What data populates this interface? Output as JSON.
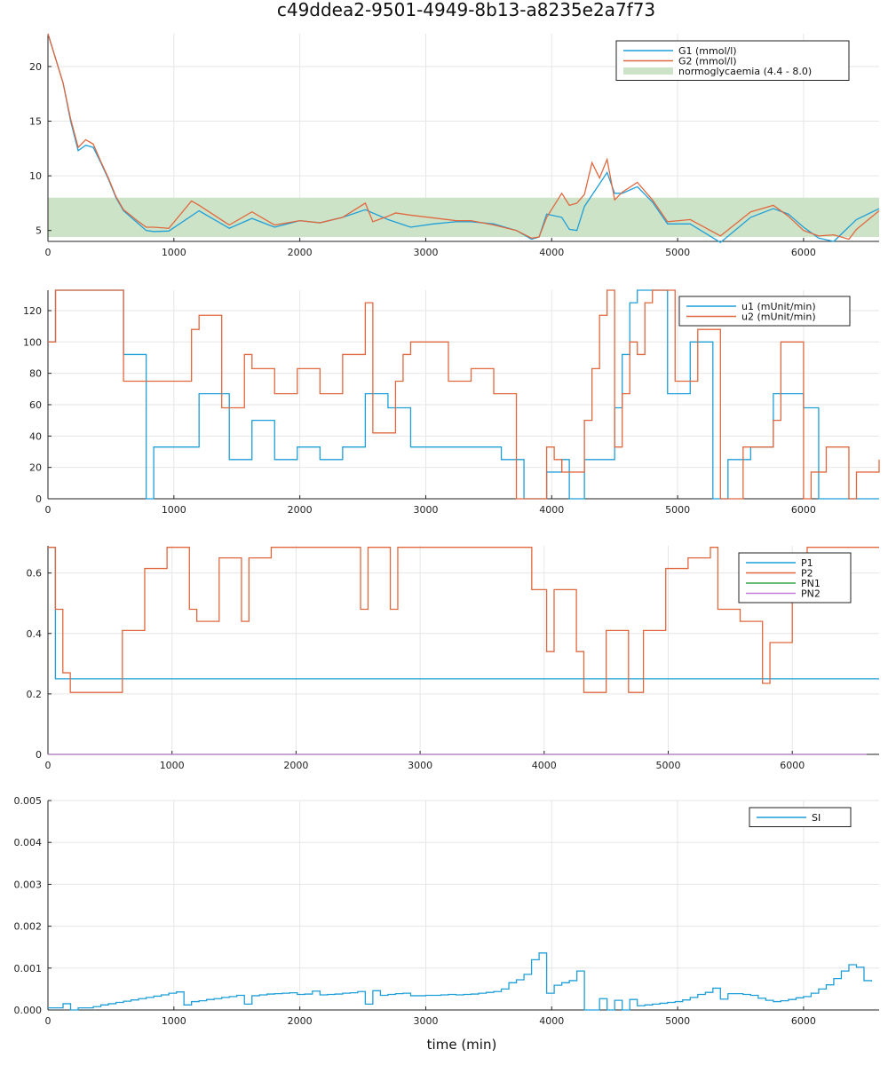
{
  "title": "c49ddea2-9501-4949-8b13-a8235e2a7f73",
  "colors": {
    "blue": "#1f9fd8",
    "orange": "#e0683f",
    "green": "#3aa54a",
    "purple": "#c47bd6",
    "band": "#cde3c8"
  },
  "chart_data": [
    {
      "type": "line",
      "xlim": [
        0,
        6600
      ],
      "ylim": [
        4,
        23
      ],
      "xticks": [
        0,
        1000,
        2000,
        3000,
        4000,
        5000,
        6000
      ],
      "yticks": [
        5,
        10,
        15,
        20
      ],
      "grid": true,
      "legend_position": "top-right",
      "band": {
        "label": "normoglycaemia (4.4 - 8.0)",
        "low": 4.4,
        "high": 8.0
      },
      "series": [
        {
          "name": "G1 (mmol/l)",
          "color": "#1f9fd8",
          "x": [
            0,
            120,
            180,
            240,
            300,
            360,
            420,
            480,
            540,
            600,
            720,
            780,
            840,
            960,
            1200,
            1440,
            1620,
            1800,
            2000,
            2160,
            2340,
            2520,
            2700,
            2880,
            3060,
            3240,
            3360,
            3540,
            3720,
            3840,
            3900,
            3960,
            4080,
            4140,
            4200,
            4260,
            4440,
            4500,
            4560,
            4680,
            4800,
            4920,
            5100,
            5340,
            5580,
            5760,
            5880,
            6000,
            6120,
            6240,
            6420,
            6600
          ],
          "y": [
            23,
            18.5,
            15.0,
            12.3,
            12.8,
            12.6,
            11.2,
            9.7,
            8.0,
            6.8,
            5.6,
            5.0,
            4.9,
            4.95,
            6.8,
            5.2,
            6.1,
            5.3,
            5.9,
            5.7,
            6.2,
            6.9,
            6.0,
            5.3,
            5.6,
            5.8,
            5.8,
            5.6,
            5.0,
            4.2,
            4.4,
            6.5,
            6.2,
            5.1,
            5.0,
            7.2,
            10.3,
            8.4,
            8.4,
            9.0,
            7.6,
            5.6,
            5.6,
            3.9,
            6.2,
            7.0,
            6.5,
            5.3,
            4.3,
            4.0,
            6.0,
            7.0
          ]
        },
        {
          "name": "G2 (mmol/l)",
          "color": "#e0683f",
          "x": [
            0,
            120,
            180,
            240,
            300,
            360,
            420,
            480,
            540,
            600,
            720,
            780,
            840,
            960,
            1140,
            1200,
            1440,
            1620,
            1800,
            2000,
            2160,
            2340,
            2520,
            2580,
            2700,
            2760,
            2880,
            3240,
            3360,
            3540,
            3720,
            3840,
            3900,
            3960,
            4080,
            4140,
            4200,
            4260,
            4320,
            4380,
            4440,
            4500,
            4560,
            4680,
            4800,
            4920,
            5100,
            5340,
            5580,
            5760,
            5880,
            6000,
            6120,
            6240,
            6360,
            6420,
            6600
          ],
          "y": [
            23,
            18.5,
            15.2,
            12.6,
            13.3,
            12.9,
            11.3,
            9.8,
            8.1,
            6.9,
            5.8,
            5.3,
            5.3,
            5.2,
            7.7,
            7.3,
            5.5,
            6.7,
            5.5,
            5.9,
            5.7,
            6.2,
            7.5,
            5.8,
            6.3,
            6.6,
            6.4,
            5.9,
            5.9,
            5.5,
            5.0,
            4.3,
            4.4,
            6.2,
            8.4,
            7.3,
            7.5,
            8.3,
            11.2,
            9.8,
            11.5,
            7.8,
            8.5,
            9.4,
            7.8,
            5.8,
            6.0,
            4.5,
            6.7,
            7.3,
            6.3,
            5.0,
            4.5,
            4.6,
            4.2,
            5.1,
            6.8
          ]
        }
      ]
    },
    {
      "type": "line",
      "xlim": [
        0,
        6600
      ],
      "ylim": [
        0,
        133
      ],
      "xticks": [
        0,
        1000,
        2000,
        3000,
        4000,
        5000,
        6000
      ],
      "yticks": [
        0,
        20,
        40,
        60,
        80,
        100,
        120
      ],
      "grid": true,
      "legend_position": "top-right",
      "series": [
        {
          "name": "u1 (mUnit/min)",
          "color": "#1f9fd8",
          "x": [
            0,
            60,
            600,
            780,
            840,
            1200,
            1440,
            1620,
            1800,
            1980,
            2160,
            2340,
            2520,
            2700,
            2880,
            3600,
            3780,
            3960,
            4080,
            4140,
            4260,
            4500,
            4560,
            4620,
            4680,
            4920,
            5100,
            5280,
            5400,
            5580,
            5760,
            6000,
            6120,
            6600
          ],
          "y": [
            100,
            133,
            92,
            0,
            33,
            67,
            25,
            50,
            25,
            33,
            25,
            33,
            67,
            58,
            33,
            25,
            0,
            17,
            25,
            0,
            25,
            58,
            92,
            125,
            133,
            67,
            100,
            0,
            25,
            33,
            67,
            58,
            0,
            0
          ]
        },
        {
          "name": "u2 (mUnit/min)",
          "color": "#e0683f",
          "x": [
            0,
            60,
            600,
            1140,
            1200,
            1380,
            1560,
            1620,
            1800,
            1980,
            2160,
            2340,
            2520,
            2580,
            2760,
            2820,
            2880,
            3180,
            3360,
            3540,
            3720,
            3960,
            4020,
            4080,
            4260,
            4320,
            4380,
            4440,
            4500,
            4560,
            4620,
            4680,
            4740,
            4800,
            4860,
            4980,
            5160,
            5340,
            5520,
            5760,
            5820,
            6000,
            6060,
            6180,
            6360,
            6420,
            6600
          ],
          "y": [
            100,
            133,
            75,
            108,
            117,
            58,
            92,
            83,
            67,
            83,
            67,
            92,
            125,
            42,
            75,
            92,
            100,
            75,
            83,
            67,
            0,
            33,
            25,
            17,
            50,
            83,
            117,
            133,
            33,
            67,
            100,
            92,
            125,
            133,
            133,
            75,
            108,
            0,
            33,
            50,
            100,
            0,
            17,
            33,
            0,
            17,
            25
          ]
        }
      ]
    },
    {
      "type": "line",
      "xlim": [
        0,
        6700
      ],
      "ylim": [
        0,
        0.69
      ],
      "xticks": [
        0,
        1000,
        2000,
        3000,
        4000,
        5000,
        6000
      ],
      "yticks": [
        0.0,
        0.2,
        0.4,
        0.6
      ],
      "grid": true,
      "legend_position": "top-right",
      "series": [
        {
          "name": "P1",
          "color": "#1f9fd8",
          "x": [
            0,
            60,
            6700
          ],
          "y": [
            0.685,
            0.25,
            0.25
          ]
        },
        {
          "name": "P2",
          "color": "#e0683f",
          "x": [
            0,
            60,
            120,
            180,
            600,
            780,
            960,
            1140,
            1200,
            1380,
            1560,
            1620,
            1800,
            2520,
            2580,
            2760,
            2820,
            3900,
            4020,
            4080,
            4260,
            4320,
            4500,
            4680,
            4800,
            4980,
            5160,
            5340,
            5400,
            5580,
            5760,
            5820,
            6000,
            6120,
            6700
          ],
          "y": [
            0.685,
            0.48,
            0.27,
            0.205,
            0.41,
            0.615,
            0.685,
            0.48,
            0.44,
            0.65,
            0.44,
            0.65,
            0.685,
            0.48,
            0.685,
            0.48,
            0.685,
            0.545,
            0.34,
            0.545,
            0.34,
            0.205,
            0.41,
            0.205,
            0.41,
            0.615,
            0.65,
            0.685,
            0.48,
            0.44,
            0.235,
            0.37,
            0.615,
            0.685,
            0.685
          ]
        },
        {
          "name": "PN1",
          "color": "#3aa54a",
          "x": [
            0,
            6600
          ],
          "y": [
            0.0,
            0.0
          ]
        },
        {
          "name": "PN2",
          "color": "#c47bd6",
          "x": [
            0,
            6600
          ],
          "y": [
            0.0,
            0.0
          ]
        }
      ]
    },
    {
      "type": "line",
      "xlim": [
        0,
        6600
      ],
      "ylim": [
        0,
        0.005
      ],
      "xticks": [
        0,
        1000,
        2000,
        3000,
        4000,
        5000,
        6000
      ],
      "yticks": [
        0.0,
        0.001,
        0.002,
        0.003,
        0.004,
        0.005
      ],
      "ytick_labels": [
        "0.000",
        "0.001",
        "0.002",
        "0.003",
        "0.004",
        "0.005"
      ],
      "xlabel": "time (min)",
      "grid": true,
      "legend_position": "top-right",
      "series": [
        {
          "name": "SI",
          "color": "#1f9fd8",
          "x": [
            0,
            120,
            180,
            240,
            360,
            420,
            480,
            540,
            600,
            660,
            720,
            780,
            840,
            900,
            960,
            1020,
            1080,
            1140,
            1200,
            1260,
            1320,
            1380,
            1440,
            1500,
            1560,
            1620,
            1680,
            1740,
            1800,
            1860,
            1920,
            1980,
            2040,
            2100,
            2160,
            2220,
            2280,
            2340,
            2400,
            2460,
            2520,
            2580,
            2640,
            2700,
            2760,
            2820,
            2880,
            2940,
            3000,
            3060,
            3120,
            3180,
            3240,
            3300,
            3360,
            3420,
            3480,
            3540,
            3600,
            3660,
            3720,
            3780,
            3840,
            3900,
            3960,
            4020,
            4080,
            4140,
            4200,
            4260,
            4320,
            4380,
            4440,
            4500,
            4560,
            4620,
            4680,
            4740,
            4800,
            4860,
            4920,
            4980,
            5040,
            5100,
            5160,
            5220,
            5280,
            5340,
            5400,
            5460,
            5520,
            5580,
            5640,
            5700,
            5760,
            5820,
            5880,
            5940,
            6000,
            6060,
            6120,
            6180,
            6240,
            6300,
            6360,
            6420,
            6480,
            6540
          ],
          "y": [
            5e-05,
            0.00015,
            0.0,
            5e-05,
            8e-05,
            0.00012,
            0.00015,
            0.00018,
            0.00021,
            0.00024,
            0.00027,
            0.0003,
            0.00033,
            0.00036,
            0.0004,
            0.00043,
            0.00012,
            0.0002,
            0.00022,
            0.00025,
            0.00027,
            0.0003,
            0.00032,
            0.00035,
            0.00014,
            0.00034,
            0.00036,
            0.00038,
            0.00039,
            0.0004,
            0.00041,
            0.00037,
            0.00038,
            0.00045,
            0.00036,
            0.00037,
            0.00038,
            0.0004,
            0.00041,
            0.00044,
            0.00014,
            0.00046,
            0.00035,
            0.00037,
            0.00039,
            0.0004,
            0.00034,
            0.00034,
            0.00035,
            0.00035,
            0.00036,
            0.00037,
            0.00036,
            0.00037,
            0.00038,
            0.0004,
            0.00042,
            0.00044,
            0.0005,
            0.00065,
            0.00072,
            0.00085,
            0.0012,
            0.00136,
            0.0004,
            0.00059,
            0.00065,
            0.0007,
            0.00093,
            0.0,
            0.0,
            0.00027,
            0.0,
            0.00023,
            0.0,
            0.00025,
            0.0001,
            0.00012,
            0.00014,
            0.00016,
            0.00018,
            0.0002,
            0.00024,
            0.0003,
            0.00037,
            0.00042,
            0.00052,
            0.00026,
            0.00039,
            0.00039,
            0.00037,
            0.00035,
            0.00028,
            0.00023,
            0.0002,
            0.00022,
            0.00025,
            0.00029,
            0.00032,
            0.0004,
            0.0005,
            0.0006,
            0.00075,
            0.00093,
            0.00108,
            0.00102,
            0.0007,
            0.00068
          ]
        }
      ]
    }
  ]
}
